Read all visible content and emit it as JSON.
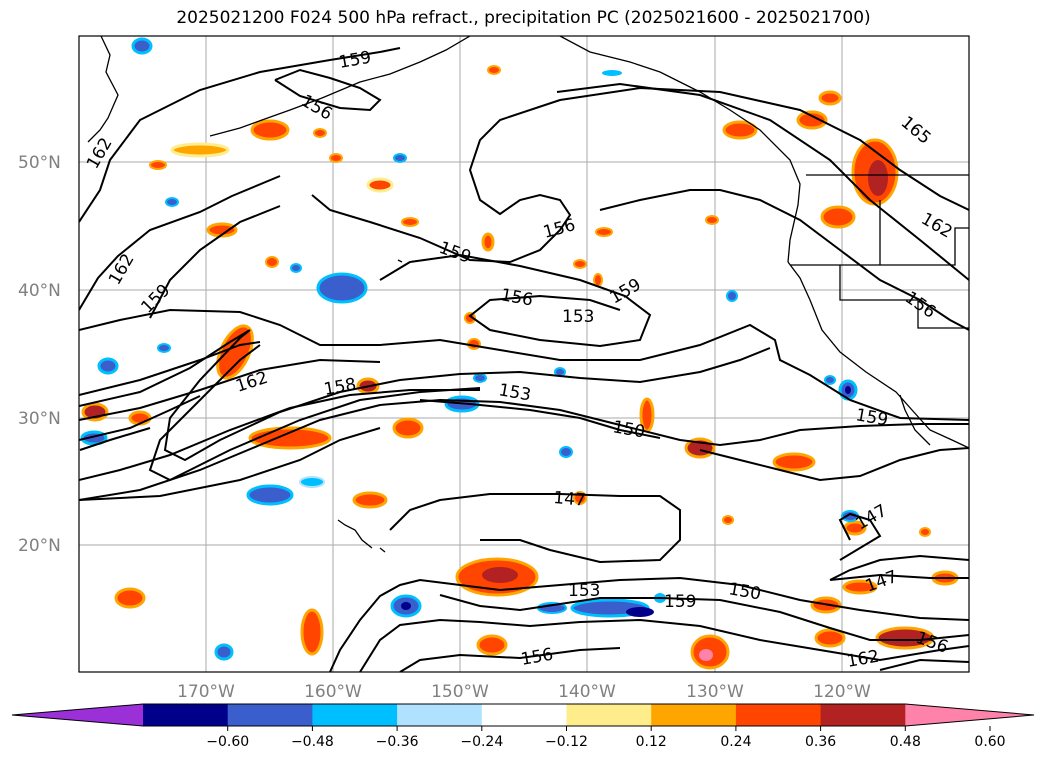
{
  "title": "2025021200 F024 500 hPa refract., precipitation PC (2025021600 - 2025021700)",
  "map": {
    "lat_labels": [
      "50°N",
      "40°N",
      "30°N",
      "20°N"
    ],
    "lon_labels": [
      "170°W",
      "160°W",
      "150°W",
      "140°W",
      "130°W",
      "120°W"
    ],
    "contour_labels": [
      "159",
      "162",
      "162",
      "159",
      "156",
      "159",
      "156",
      "153",
      "159",
      "156",
      "162",
      "158",
      "153",
      "150",
      "147",
      "159",
      "147",
      "153",
      "150",
      "159",
      "147",
      "156",
      "162",
      "156",
      "165",
      "162",
      "156"
    ]
  },
  "colorbar": {
    "colors": [
      "#9b30d9",
      "#00008b",
      "#3a5fcd",
      "#00bfff",
      "#b0e2ff",
      "#ffffff",
      "#ffec8b",
      "#ffa500",
      "#ff4500",
      "#b22222",
      "#ff82ab"
    ],
    "tick_labels": [
      "−0.60",
      "−0.48",
      "−0.36",
      "−0.24",
      "−0.12",
      "0.12",
      "0.24",
      "0.36",
      "0.48",
      "0.60"
    ]
  }
}
